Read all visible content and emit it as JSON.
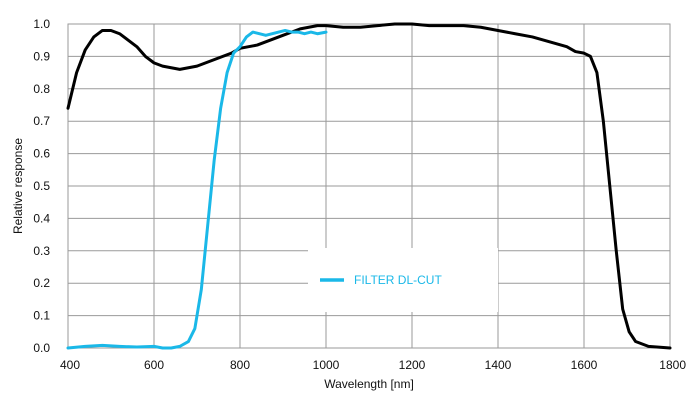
{
  "chart_data": {
    "type": "line",
    "title": "",
    "xlabel": "Wavelength [nm]",
    "ylabel": "Relative response",
    "xlim": [
      400,
      1800
    ],
    "ylim": [
      0,
      1.0
    ],
    "x_ticks": [
      "400",
      "600",
      "800",
      "1000",
      "1200",
      "1400",
      "1600",
      "1800"
    ],
    "y_ticks": [
      "0.0",
      "0.1",
      "0.2",
      "0.3",
      "0.4",
      "0.5",
      "0.6",
      "0.7",
      "0.8",
      "0.9",
      "1.0"
    ],
    "grid": true,
    "legend_position": "center",
    "series": [
      {
        "color": "#000000",
        "points": [
          [
            400,
            0.74
          ],
          [
            420,
            0.85
          ],
          [
            440,
            0.92
          ],
          [
            460,
            0.96
          ],
          [
            480,
            0.98
          ],
          [
            500,
            0.98
          ],
          [
            520,
            0.97
          ],
          [
            540,
            0.95
          ],
          [
            560,
            0.93
          ],
          [
            580,
            0.9
          ],
          [
            600,
            0.88
          ],
          [
            620,
            0.87
          ],
          [
            640,
            0.865
          ],
          [
            660,
            0.86
          ],
          [
            680,
            0.865
          ],
          [
            700,
            0.87
          ],
          [
            720,
            0.88
          ],
          [
            740,
            0.89
          ],
          [
            760,
            0.9
          ],
          [
            780,
            0.91
          ],
          [
            800,
            0.925
          ],
          [
            820,
            0.93
          ],
          [
            840,
            0.935
          ],
          [
            860,
            0.945
          ],
          [
            880,
            0.955
          ],
          [
            900,
            0.965
          ],
          [
            920,
            0.975
          ],
          [
            940,
            0.985
          ],
          [
            960,
            0.99
          ],
          [
            980,
            0.995
          ],
          [
            1000,
            0.995
          ],
          [
            1040,
            0.99
          ],
          [
            1080,
            0.99
          ],
          [
            1120,
            0.995
          ],
          [
            1160,
            1.0
          ],
          [
            1200,
            1.0
          ],
          [
            1240,
            0.995
          ],
          [
            1280,
            0.995
          ],
          [
            1320,
            0.995
          ],
          [
            1360,
            0.99
          ],
          [
            1400,
            0.98
          ],
          [
            1440,
            0.97
          ],
          [
            1480,
            0.96
          ],
          [
            1520,
            0.945
          ],
          [
            1560,
            0.93
          ],
          [
            1580,
            0.915
          ],
          [
            1600,
            0.91
          ],
          [
            1615,
            0.9
          ],
          [
            1630,
            0.85
          ],
          [
            1645,
            0.7
          ],
          [
            1660,
            0.5
          ],
          [
            1675,
            0.3
          ],
          [
            1690,
            0.12
          ],
          [
            1705,
            0.05
          ],
          [
            1720,
            0.02
          ],
          [
            1750,
            0.005
          ],
          [
            1800,
            0.0
          ]
        ]
      },
      {
        "name": "FILTER DL-CUT",
        "color": "#1ab8e8",
        "points": [
          [
            400,
            0.0
          ],
          [
            440,
            0.005
          ],
          [
            480,
            0.008
          ],
          [
            520,
            0.005
          ],
          [
            560,
            0.003
          ],
          [
            600,
            0.005
          ],
          [
            620,
            0.0
          ],
          [
            640,
            0.0
          ],
          [
            660,
            0.005
          ],
          [
            680,
            0.02
          ],
          [
            695,
            0.06
          ],
          [
            710,
            0.18
          ],
          [
            725,
            0.38
          ],
          [
            740,
            0.58
          ],
          [
            755,
            0.74
          ],
          [
            770,
            0.85
          ],
          [
            785,
            0.91
          ],
          [
            800,
            0.93
          ],
          [
            815,
            0.96
          ],
          [
            830,
            0.975
          ],
          [
            845,
            0.97
          ],
          [
            860,
            0.965
          ],
          [
            875,
            0.97
          ],
          [
            890,
            0.975
          ],
          [
            905,
            0.98
          ],
          [
            920,
            0.975
          ],
          [
            935,
            0.975
          ],
          [
            950,
            0.97
          ],
          [
            965,
            0.975
          ],
          [
            980,
            0.97
          ],
          [
            1000,
            0.975
          ]
        ]
      }
    ]
  }
}
